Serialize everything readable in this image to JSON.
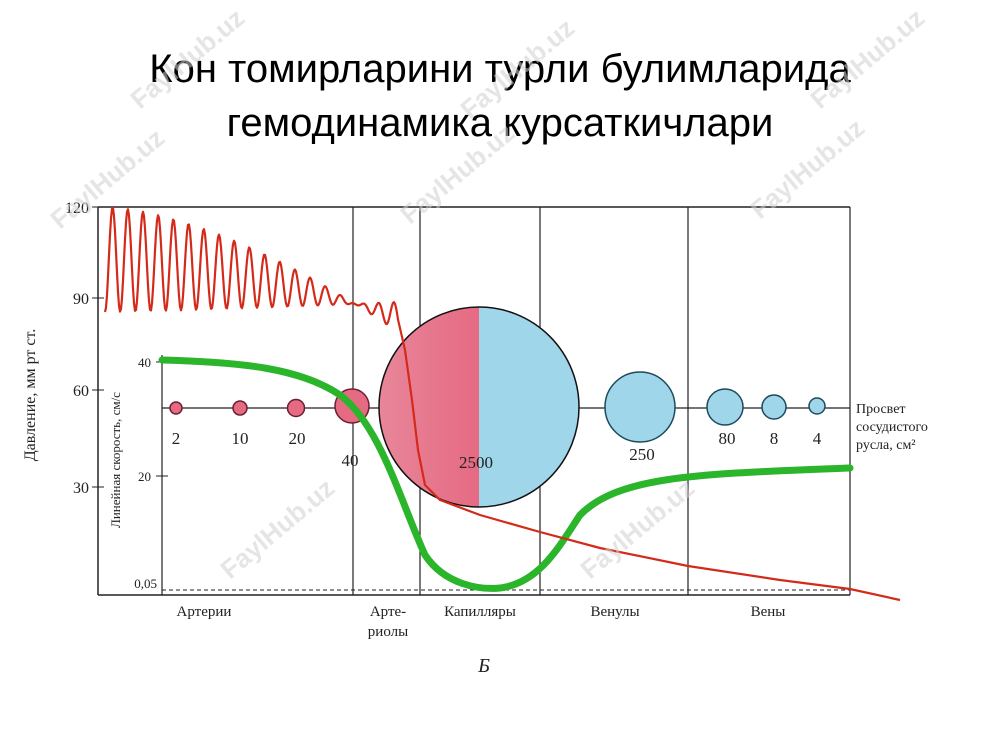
{
  "title": {
    "line1": "Кон томирларини турли булимларида",
    "line2": "гемодинамика курсаткичлари"
  },
  "watermark": "FaylHub.uz",
  "chart_data": {
    "type": "diagram",
    "pressure_axis": {
      "label": "Давление, мм рт ст.",
      "ticks": [
        120,
        90,
        60,
        30
      ]
    },
    "velocity_axis": {
      "label": "Линейная скорость, см/с",
      "ticks": [
        "40",
        "20",
        "0,05"
      ]
    },
    "segments": [
      "Артерии",
      "Арте-\nриолы",
      "Капилляры",
      "Венулы",
      "Вены"
    ],
    "cross_section": {
      "label_line1": "Просвет",
      "label_line2": "сосудистого",
      "label_line3": "русла, см²",
      "values": [
        "2",
        "10",
        "20",
        "40",
        "2500",
        "250",
        "80",
        "8",
        "4"
      ]
    },
    "figure_letter": "Б",
    "colors": {
      "pressure": "#d42a1a",
      "velocity": "#2bb52b",
      "arterial_fill": "#e56a82",
      "venous_fill": "#9fd6ea"
    }
  }
}
